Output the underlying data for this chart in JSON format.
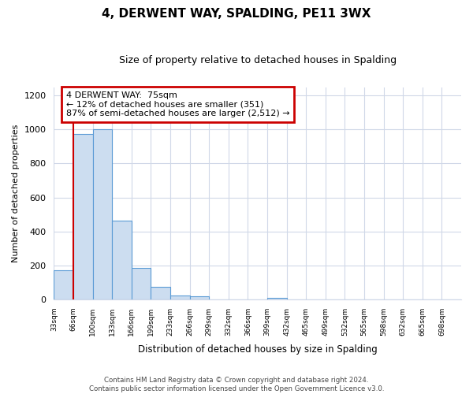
{
  "title": "4, DERWENT WAY, SPALDING, PE11 3WX",
  "subtitle": "Size of property relative to detached houses in Spalding",
  "xlabel": "Distribution of detached houses by size in Spalding",
  "ylabel": "Number of detached properties",
  "categories": [
    "33sqm",
    "66sqm",
    "100sqm",
    "133sqm",
    "166sqm",
    "199sqm",
    "233sqm",
    "266sqm",
    "299sqm",
    "332sqm",
    "366sqm",
    "399sqm",
    "432sqm",
    "465sqm",
    "499sqm",
    "532sqm",
    "565sqm",
    "598sqm",
    "632sqm",
    "665sqm",
    "698sqm"
  ],
  "values": [
    170,
    975,
    1000,
    462,
    185,
    75,
    22,
    18,
    0,
    0,
    0,
    10,
    0,
    0,
    0,
    0,
    0,
    0,
    0,
    0,
    0
  ],
  "bar_fill_color": "#ccddf0",
  "bar_edge_color": "#5b9bd5",
  "ylim": [
    0,
    1250
  ],
  "yticks": [
    0,
    200,
    400,
    600,
    800,
    1000,
    1200
  ],
  "annotation_line1": "4 DERWENT WAY:  75sqm",
  "annotation_line2": "← 12% of detached houses are smaller (351)",
  "annotation_line3": "87% of semi-detached houses are larger (2,512) →",
  "annotation_box_color": "#ffffff",
  "annotation_box_edge": "#cc0000",
  "property_line_color": "#cc0000",
  "footer_line1": "Contains HM Land Registry data © Crown copyright and database right 2024.",
  "footer_line2": "Contains public sector information licensed under the Open Government Licence v3.0.",
  "background_color": "#ffffff",
  "grid_color": "#d0d8e8"
}
